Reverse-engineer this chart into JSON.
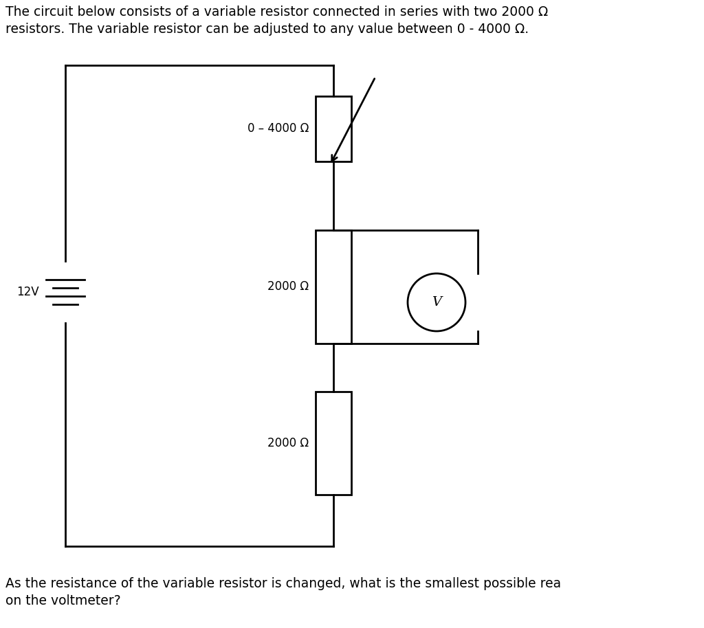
{
  "title_text": "The circuit below consists of a variable resistor connected in series with two 2000 Ω\nresistors. The variable resistor can be adjusted to any value between 0 - 4000 Ω.",
  "bottom_text": "As the resistance of the variable resistor is changed, what is the smallest possible rea\non the voltmeter?",
  "battery_label": "12V",
  "var_resistor_label": "0 – 4000 Ω",
  "resistor1_label": "2000 Ω",
  "resistor2_label": "2000 Ω",
  "voltmeter_label": "V",
  "bg_color": "#ffffff",
  "line_color": "#000000",
  "font_size_text": 13.5,
  "font_size_labels": 12,
  "font_size_voltmeter": 14
}
